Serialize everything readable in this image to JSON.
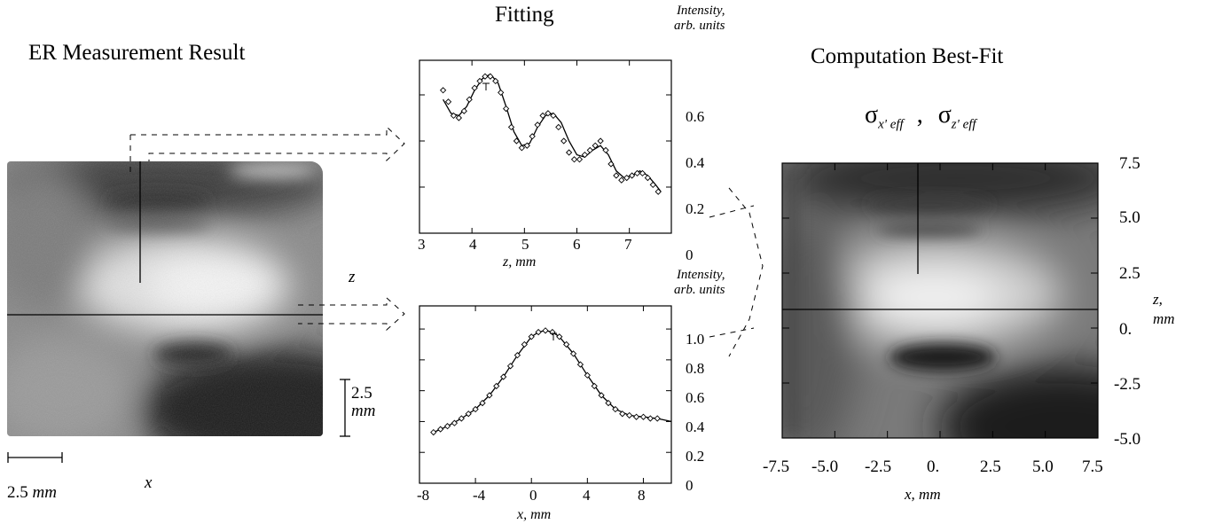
{
  "headings": {
    "measurement": "ER Measurement Result",
    "fitting": "Fitting",
    "computation": "Computation Best-Fit"
  },
  "sigma_label": {
    "sym1": "σ",
    "sub1": "x' eff",
    "sep": ",",
    "sym2": "σ",
    "sub2": "z' eff"
  },
  "measurement_panel": {
    "z_label": "z",
    "x_label": "x",
    "scale_vertical_value": "2.5",
    "scale_vertical_unit": "mm",
    "scale_horizontal_value": "2.5",
    "scale_horizontal_unit": "mm"
  },
  "top_fit": {
    "ylabel_line1": "Intensity,",
    "ylabel_line2": "arb. units",
    "xlabel": "z, mm",
    "x_ticks": [
      "3",
      "4",
      "5",
      "6",
      "7"
    ],
    "y_ticks": [
      "0.6",
      "0.4",
      "0.2",
      "0"
    ]
  },
  "bottom_fit": {
    "ylabel_line1": "Intensity,",
    "ylabel_line2": "arb. units",
    "xlabel": "x, mm",
    "x_ticks": [
      "-8",
      "-4",
      "0",
      "4",
      "8"
    ],
    "y_ticks": [
      "1.0",
      "0.8",
      "0.6",
      "0.4",
      "0.2",
      "0"
    ]
  },
  "best_fit_map": {
    "x_ticks": [
      "-7.5",
      "-5.0",
      "-2.5",
      "0.",
      "2.5",
      "5.0",
      "7.5"
    ],
    "y_ticks": [
      "7.5",
      "5.0",
      "2.5",
      "0.",
      "-2.5",
      "-5.0"
    ],
    "xlabel": "x, mm",
    "ylabel_line1": "z,",
    "ylabel_line2": "mm"
  },
  "chart_data": [
    {
      "type": "line",
      "panel": "top",
      "xlim": [
        3,
        7.8
      ],
      "ylim": [
        0,
        0.75
      ],
      "series": [
        {
          "style": "markers",
          "x": [
            3.45,
            3.55,
            3.65,
            3.75,
            3.85,
            3.95,
            4.05,
            4.15,
            4.25,
            4.35,
            4.45,
            4.55,
            4.65,
            4.75,
            4.85,
            4.95,
            5.05,
            5.15,
            5.25,
            5.35,
            5.45,
            5.55,
            5.65,
            5.75,
            5.85,
            5.95,
            6.05,
            6.15,
            6.25,
            6.35,
            6.45,
            6.55,
            6.65,
            6.75,
            6.85,
            6.95,
            7.05,
            7.15,
            7.25,
            7.35,
            7.45,
            7.55
          ],
          "y": [
            0.62,
            0.57,
            0.51,
            0.5,
            0.53,
            0.58,
            0.63,
            0.66,
            0.68,
            0.68,
            0.66,
            0.61,
            0.54,
            0.46,
            0.4,
            0.37,
            0.38,
            0.42,
            0.47,
            0.51,
            0.52,
            0.51,
            0.46,
            0.4,
            0.35,
            0.32,
            0.32,
            0.34,
            0.36,
            0.38,
            0.4,
            0.36,
            0.3,
            0.25,
            0.23,
            0.24,
            0.25,
            0.26,
            0.26,
            0.24,
            0.21,
            0.18
          ]
        },
        {
          "style": "line",
          "x": [
            3.45,
            3.6,
            3.75,
            3.9,
            4.05,
            4.2,
            4.35,
            4.5,
            4.65,
            4.8,
            4.95,
            5.1,
            5.25,
            5.4,
            5.55,
            5.7,
            5.85,
            6.0,
            6.15,
            6.3,
            6.45,
            6.6,
            6.75,
            6.9,
            7.05,
            7.2,
            7.35,
            7.5,
            7.6
          ],
          "y": [
            0.58,
            0.52,
            0.51,
            0.55,
            0.62,
            0.67,
            0.69,
            0.65,
            0.55,
            0.44,
            0.38,
            0.39,
            0.46,
            0.51,
            0.52,
            0.48,
            0.4,
            0.34,
            0.33,
            0.36,
            0.38,
            0.34,
            0.27,
            0.24,
            0.25,
            0.27,
            0.25,
            0.21,
            0.18
          ]
        }
      ]
    },
    {
      "type": "line",
      "panel": "bottom",
      "xlim": [
        -8,
        10
      ],
      "ylim": [
        0,
        1.15
      ],
      "series": [
        {
          "style": "markers",
          "x": [
            -7,
            -6.5,
            -6,
            -5.5,
            -5,
            -4.5,
            -4,
            -3.5,
            -3,
            -2.5,
            -2,
            -1.5,
            -1,
            -0.5,
            0,
            0.5,
            1,
            1.5,
            2,
            2.5,
            3,
            3.5,
            4,
            4.5,
            5,
            5.5,
            6,
            6.5,
            7,
            7.5,
            8,
            8.5,
            9
          ],
          "y": [
            0.33,
            0.35,
            0.37,
            0.39,
            0.42,
            0.45,
            0.48,
            0.52,
            0.57,
            0.63,
            0.69,
            0.76,
            0.83,
            0.9,
            0.95,
            0.98,
            0.99,
            0.98,
            0.95,
            0.9,
            0.84,
            0.77,
            0.7,
            0.63,
            0.57,
            0.52,
            0.48,
            0.45,
            0.44,
            0.43,
            0.43,
            0.42,
            0.42
          ]
        },
        {
          "style": "line",
          "x": [
            -7,
            -6,
            -5,
            -4,
            -3,
            -2,
            -1,
            0,
            0.5,
            1,
            1.5,
            2,
            3,
            4,
            5,
            6,
            7,
            8,
            9,
            10
          ],
          "y": [
            0.33,
            0.37,
            0.42,
            0.48,
            0.57,
            0.69,
            0.83,
            0.95,
            0.98,
            0.99,
            0.98,
            0.95,
            0.84,
            0.7,
            0.57,
            0.48,
            0.44,
            0.43,
            0.42,
            0.4
          ]
        }
      ]
    }
  ]
}
